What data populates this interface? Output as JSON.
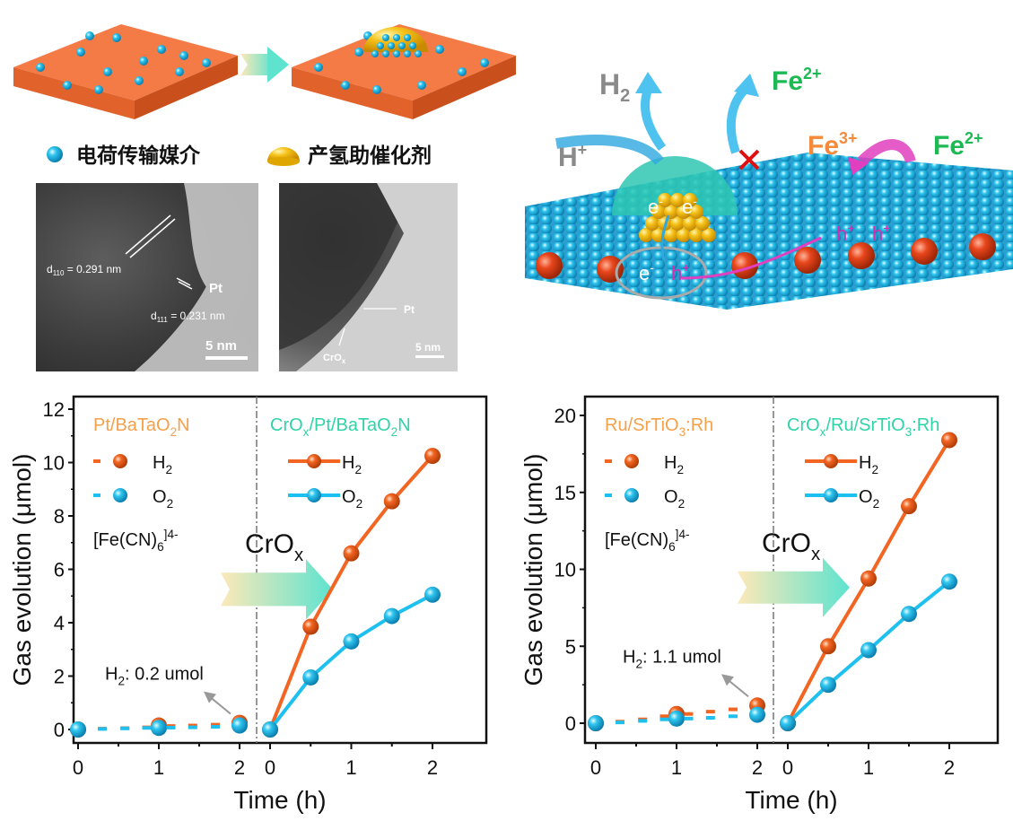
{
  "top_left": {
    "legend": {
      "mediator_label": "电荷传输媒介",
      "cocatalyst_label": "产氢助催化剂"
    },
    "tem1": {
      "d110": "d",
      "d110_sub": "110",
      "d110_val": " = 0.291 nm",
      "pt": "Pt",
      "d111": "d",
      "d111_sub": "111",
      "d111_val": " = 0.231 nm",
      "scale": "5 nm"
    },
    "tem2": {
      "pt": "Pt",
      "crox": "CrO",
      "crox_sub": "x",
      "scale": "5 nm"
    }
  },
  "top_right": {
    "h2": "H",
    "h2_sub": "2",
    "fe2_a": "Fe",
    "fe2_a_sup": "2+",
    "hplus": "H",
    "hplus_sup": "+",
    "fe3": "Fe",
    "fe3_sup": "3+",
    "fe2_b": "Fe",
    "fe2_b_sup": "2+",
    "electron": "e",
    "electron_sup": "-",
    "hole": "h",
    "hole_sup": "+"
  },
  "colors": {
    "h2": "#f26522",
    "o2": "#1ec0ef",
    "catalyst_label": "#f5a04a",
    "cr_label": "#2fd3a8",
    "fe2": "#1db954",
    "fe3": "#f58a3a"
  },
  "chart_data": [
    {
      "type": "line",
      "ylabel": "Gas evolution (μmol)",
      "xlabel": "Time (h)",
      "ylim": [
        -0.9,
        12.5
      ],
      "yticks": [
        "0",
        "2",
        "4",
        "6",
        "8",
        "10",
        "12"
      ],
      "ytick_values": [
        0,
        2,
        4,
        6,
        8,
        10,
        12
      ],
      "xticks_left": [
        "0",
        "1",
        "2"
      ],
      "xticks_right": [
        "0",
        "1",
        "2"
      ],
      "before": {
        "title": "Pt/BaTaO",
        "title_sub": "2",
        "title_end": "N",
        "x": [
          0,
          0.3,
          0.58,
          0.85,
          1,
          1.15,
          1.42,
          1.7,
          2
        ],
        "series": [
          {
            "name": "H",
            "sub": "2",
            "values": [
              0,
              0.03,
              0.05,
              0.08,
              0.15,
              0.13,
              0.15,
              0.18,
              0.25
            ]
          },
          {
            "name": "O",
            "sub": "2",
            "values": [
              0,
              0.02,
              0.04,
              0.06,
              0.06,
              0.07,
              0.08,
              0.1,
              0.15
            ]
          }
        ],
        "electrolyte": "[Fe(CN)",
        "electrolyte_sub": "6",
        "electrolyte_sup": "]4-",
        "annotation": "H",
        "annotation_sub": "2",
        "annotation_end": ": 0.2 umol"
      },
      "after": {
        "title": "CrO",
        "title_sub1": "x",
        "title_mid": "/Pt/BaTaO",
        "title_sub2": "2",
        "title_end": "N",
        "x": [
          0,
          0.5,
          1,
          1.5,
          2
        ],
        "series": [
          {
            "name": "H",
            "sub": "2",
            "values": [
              0,
              3.85,
              6.6,
              8.55,
              10.25
            ]
          },
          {
            "name": "O",
            "sub": "2",
            "values": [
              0,
              1.95,
              3.3,
              4.25,
              5.05
            ]
          }
        ]
      },
      "arrow_label": "CrO",
      "arrow_label_sub": "x"
    },
    {
      "type": "line",
      "ylabel": "Gas evolution (μmol)",
      "xlabel": "Time (h)",
      "ylim": [
        -1.2,
        21
      ],
      "yticks": [
        "0",
        "5",
        "10",
        "15",
        "20"
      ],
      "ytick_values": [
        0,
        5,
        10,
        15,
        20
      ],
      "xticks_left": [
        "0",
        "1",
        "2"
      ],
      "xticks_right": [
        "0",
        "1",
        "2"
      ],
      "before": {
        "title": "Ru/SrTiO",
        "title_sub": "3",
        "title_end": ":Rh",
        "x": [
          0,
          0.3,
          0.58,
          0.85,
          1,
          1.15,
          1.42,
          1.7,
          2
        ],
        "series": [
          {
            "name": "H",
            "sub": "2",
            "values": [
              0,
              0.1,
              0.25,
              0.45,
              0.6,
              0.6,
              0.75,
              0.9,
              1.15
            ]
          },
          {
            "name": "O",
            "sub": "2",
            "values": [
              0,
              0.05,
              0.15,
              0.25,
              0.3,
              0.3,
              0.35,
              0.45,
              0.55
            ]
          }
        ],
        "electrolyte": "[Fe(CN)",
        "electrolyte_sub": "6",
        "electrolyte_sup": "]4-",
        "annotation": "H",
        "annotation_sub": "2",
        "annotation_end": ": 1.1 umol"
      },
      "after": {
        "title": "CrO",
        "title_sub1": "x",
        "title_mid": "/Ru/SrTiO",
        "title_sub2": "3",
        "title_end": ":Rh",
        "x": [
          0,
          0.5,
          1,
          1.5,
          2
        ],
        "series": [
          {
            "name": "H",
            "sub": "2",
            "values": [
              0,
              5.0,
              9.4,
              14.1,
              18.4
            ]
          },
          {
            "name": "O",
            "sub": "2",
            "values": [
              0,
              2.5,
              4.75,
              7.1,
              9.2
            ]
          }
        ]
      },
      "arrow_label": "CrO",
      "arrow_label_sub": "x"
    }
  ]
}
